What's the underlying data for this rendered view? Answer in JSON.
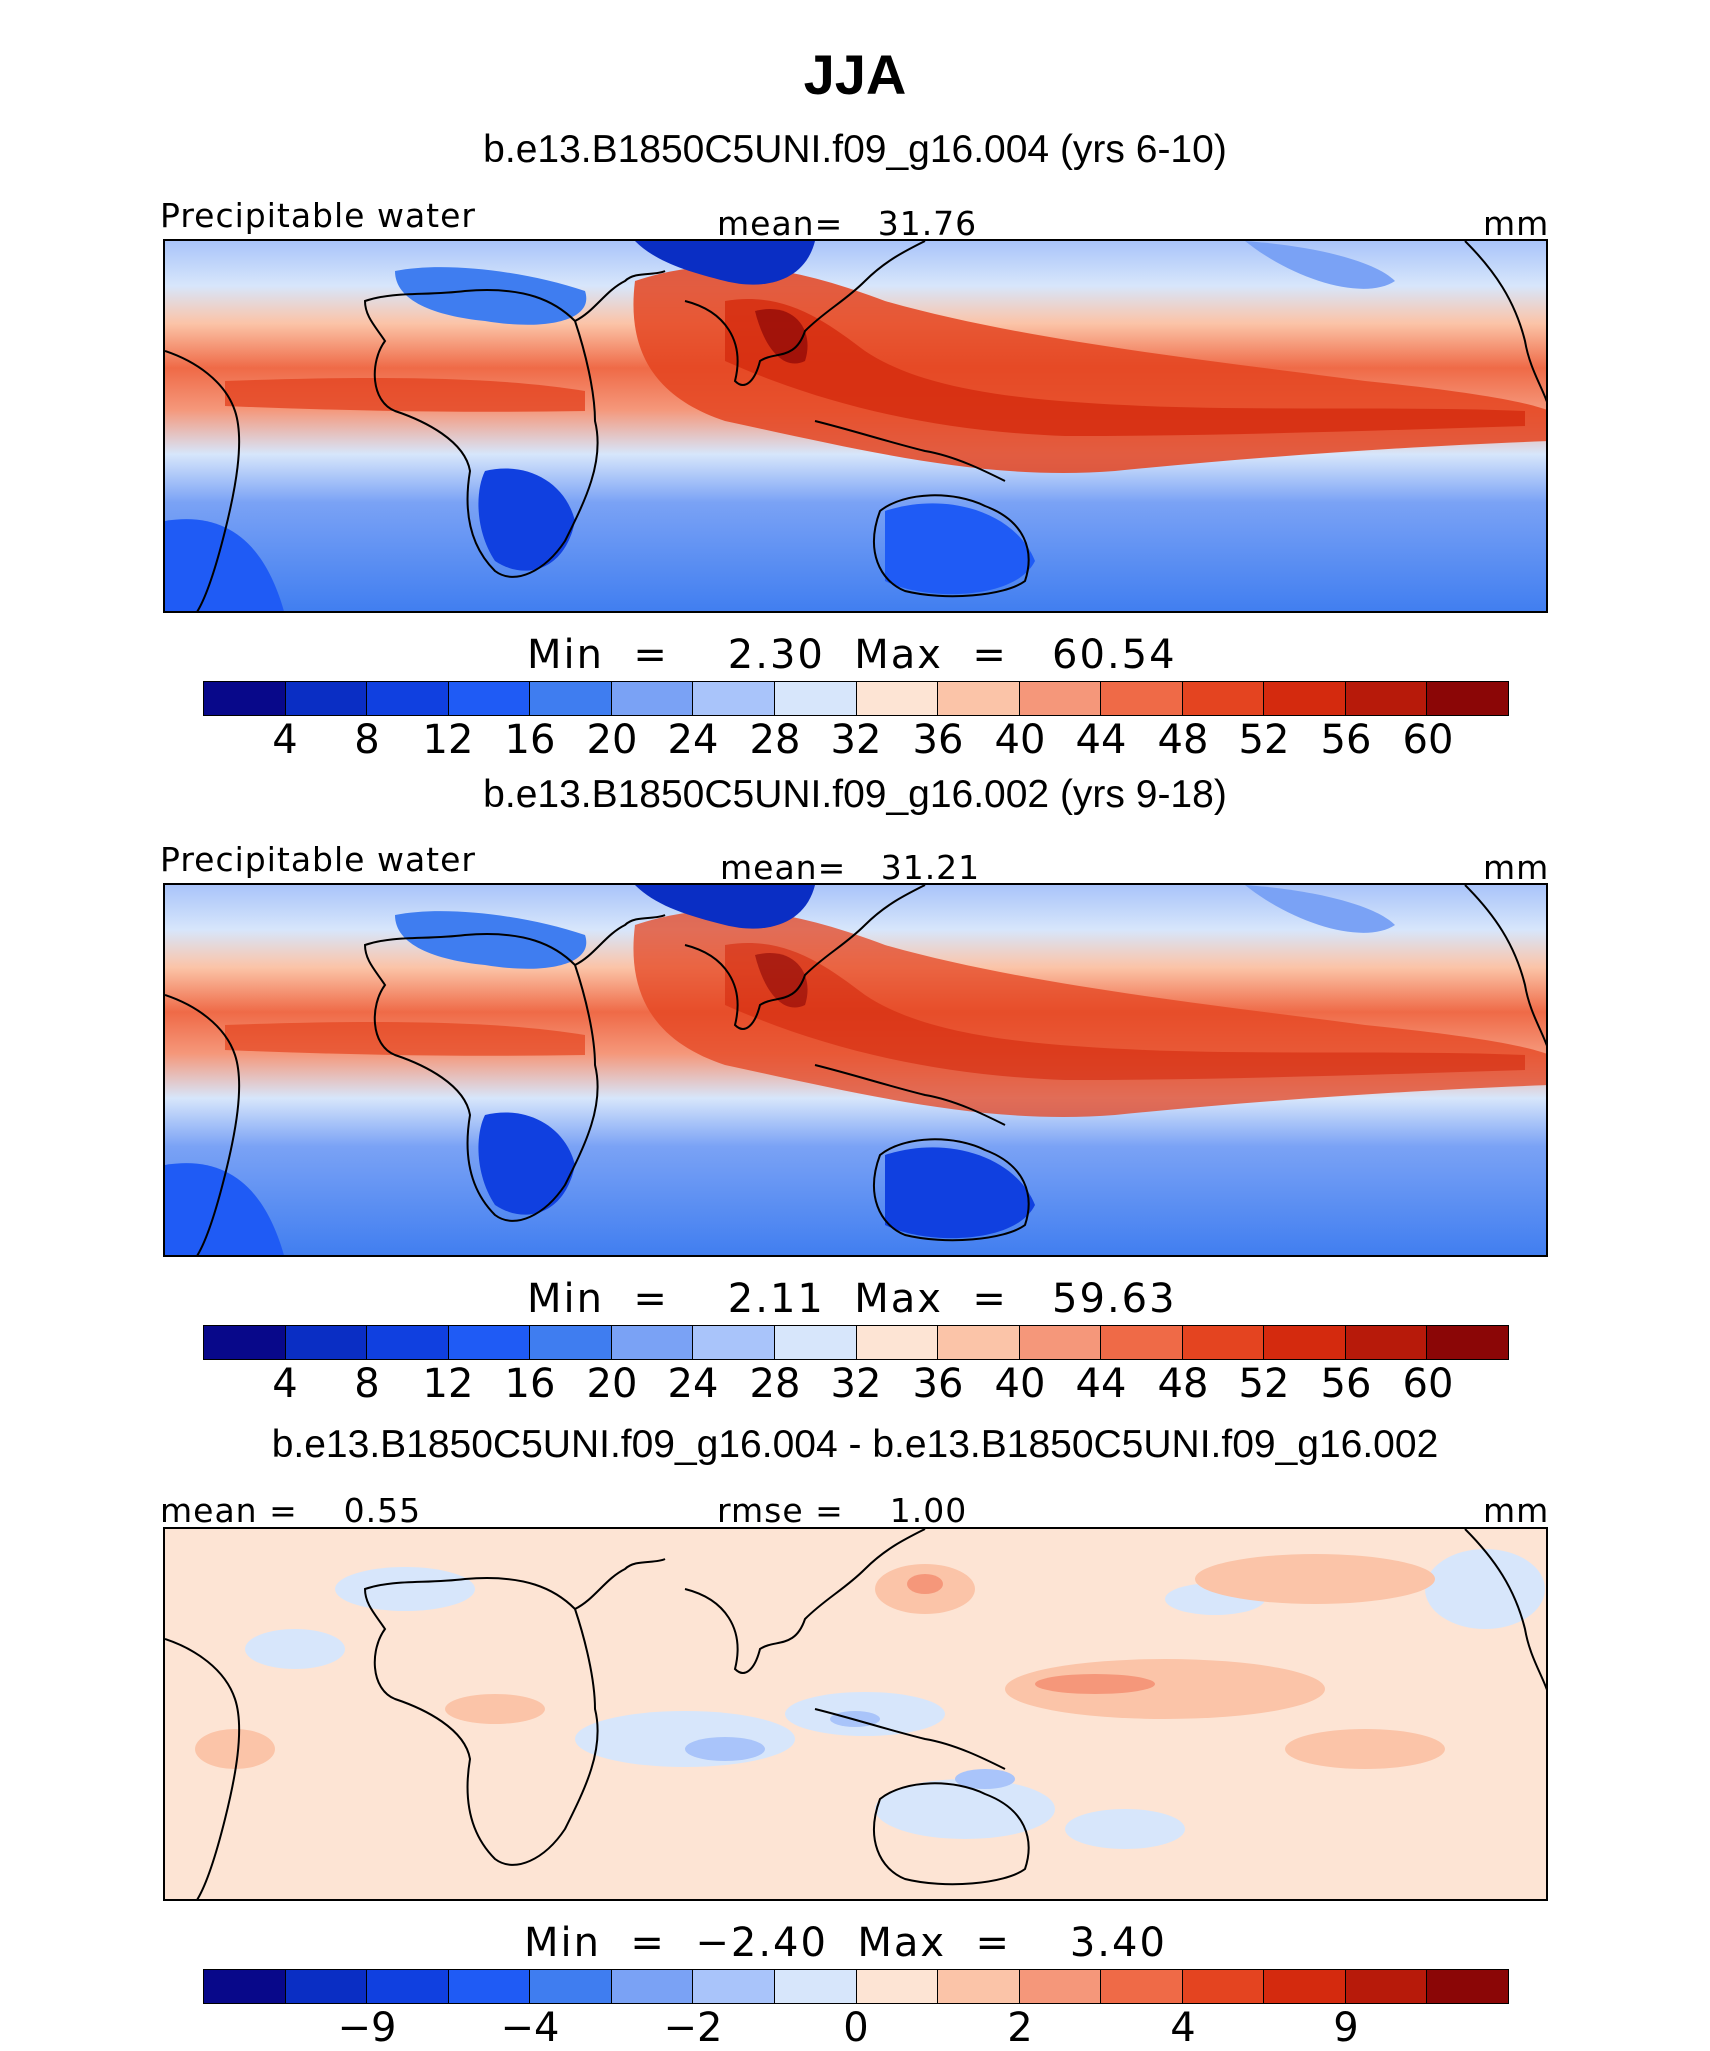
{
  "title": "JJA",
  "panels": [
    {
      "title": "b.e13.B1850C5UNI.f09_g16.004 (yrs 6-10)",
      "left_label": "Precipitable water",
      "center_label": "mean=   31.76",
      "units": "mm",
      "min_max": "Min  =    2.30  Max  =   60.54",
      "colorbar_labels": [
        "4",
        "8",
        "12",
        "16",
        "20",
        "24",
        "28",
        "32",
        "36",
        "40",
        "44",
        "48",
        "52",
        "56",
        "60"
      ]
    },
    {
      "title": "b.e13.B1850C5UNI.f09_g16.002 (yrs 9-18)",
      "left_label": "Precipitable water",
      "center_label": "mean=   31.21",
      "units": "mm",
      "min_max": "Min  =    2.11  Max  =   59.63",
      "colorbar_labels": [
        "4",
        "8",
        "12",
        "16",
        "20",
        "24",
        "28",
        "32",
        "36",
        "40",
        "44",
        "48",
        "52",
        "56",
        "60"
      ]
    },
    {
      "title": "b.e13.B1850C5UNI.f09_g16.004 - b.e13.B1850C5UNI.f09_g16.002",
      "left_label": "mean =    0.55",
      "center_label": "rmse =    1.00",
      "units": "mm",
      "min_max": "Min  =  −2.40  Max  =    3.40",
      "colorbar_labels": [
        "−9",
        "−4",
        "−2",
        "0",
        "2",
        "4",
        "9"
      ]
    }
  ],
  "colors": {
    "full_palette": [
      "#08088a",
      "#0a2ec4",
      "#1040e0",
      "#1f5bf5",
      "#3f7df0",
      "#7aa2f5",
      "#a9c4fa",
      "#d7e6fb",
      "#fde4d4",
      "#fbc4a8",
      "#f5977a",
      "#ef6a47",
      "#e44420",
      "#d42a0e",
      "#b71a0a",
      "#8b0606"
    ],
    "diff_palette": [
      "#08088a",
      "#0a2ec4",
      "#1040e0",
      "#1f5bf5",
      "#3f7df0",
      "#7aa2f5",
      "#a9c4fa",
      "#d7e6fb",
      "#fde4d4",
      "#fbc4a8",
      "#f5977a",
      "#ef6a47",
      "#e44420",
      "#d42a0e",
      "#b71a0a",
      "#8b0606"
    ]
  }
}
